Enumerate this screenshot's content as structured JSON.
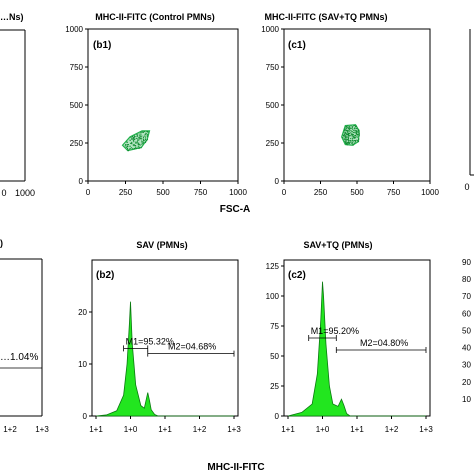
{
  "figure": {
    "shared_xlabel_top": "FSC-A",
    "shared_xlabel_bottom": "MHC-II-FITC"
  },
  "chart_data": [
    {
      "id": "a1",
      "type": "scatter",
      "partial": true,
      "title": "…Ns)",
      "x_ticks": [
        "0",
        "1000"
      ],
      "y_ticks": []
    },
    {
      "id": "b1",
      "type": "scatter",
      "title": "MHC-II-FITC (Control PMNs)",
      "panel_label": "(b1)",
      "xlim": [
        0,
        1000
      ],
      "ylim": [
        0,
        1000
      ],
      "x_ticks": [
        "0",
        "250",
        "500",
        "750",
        "1000"
      ],
      "y_ticks": [
        "0",
        "250",
        "500",
        "750",
        "1000"
      ],
      "population_color": "#22b14c",
      "population_outline": [
        [
          230,
          235
        ],
        [
          280,
          290
        ],
        [
          360,
          330
        ],
        [
          410,
          330
        ],
        [
          395,
          275
        ],
        [
          355,
          220
        ],
        [
          265,
          200
        ]
      ]
    },
    {
      "id": "c1",
      "type": "scatter",
      "title": "MHC-II-FITC (SAV+TQ PMNs)",
      "panel_label": "(c1)",
      "xlim": [
        0,
        1000
      ],
      "ylim": [
        0,
        1000
      ],
      "x_ticks": [
        "0",
        "250",
        "500",
        "750",
        "1000"
      ],
      "y_ticks": [
        "0",
        "250",
        "500",
        "750",
        "1000"
      ],
      "population_color": "#22b14c",
      "population_outline": [
        [
          395,
          290
        ],
        [
          420,
          365
        ],
        [
          490,
          370
        ],
        [
          515,
          330
        ],
        [
          510,
          260
        ],
        [
          470,
          235
        ],
        [
          420,
          240
        ]
      ]
    },
    {
      "id": "d1",
      "type": "scatter",
      "partial": true,
      "title": "",
      "x_ticks": [
        "0"
      ],
      "y_ticks": []
    },
    {
      "id": "a2",
      "type": "area",
      "partial": true,
      "title": "",
      "x_ticks": [
        "1+2",
        "1+3"
      ],
      "markers": [
        {
          "label": "…1.04%"
        }
      ]
    },
    {
      "id": "b2",
      "type": "area",
      "title": "SAV (PMNs)",
      "panel_label": "(b2)",
      "x_scale": "log",
      "x_ticks": [
        "1+1",
        "1+0",
        "1+1",
        "1+2",
        "1+3"
      ],
      "y_ticks": [
        "0",
        "10",
        "20"
      ],
      "ylim": [
        0,
        30
      ],
      "fill_color": "#22e61f",
      "x": [
        -1.0,
        -0.7,
        -0.4,
        -0.2,
        -0.1,
        -0.03,
        0.0,
        0.05,
        0.15,
        0.3,
        0.4,
        0.45,
        0.5,
        0.55,
        0.6,
        0.7,
        0.8,
        1.0,
        3.0
      ],
      "y": [
        0,
        0.2,
        1.0,
        4.0,
        10.0,
        18.0,
        22.0,
        14.0,
        6.0,
        2.0,
        1.5,
        3.0,
        4.5,
        3.0,
        1.2,
        0.3,
        0,
        0,
        0
      ],
      "markers": [
        {
          "label": "M1=95.32%",
          "from": -0.2,
          "to": 0.5,
          "y": 13
        },
        {
          "label": "M2=04.68%",
          "from": 0.5,
          "to": 3.0,
          "y": 12
        }
      ]
    },
    {
      "id": "c2",
      "type": "area",
      "title": "SAV+TQ (PMNs)",
      "panel_label": "(c2)",
      "x_scale": "log",
      "x_ticks": [
        "1+1",
        "1+0",
        "1+1",
        "1+2",
        "1+3"
      ],
      "y_ticks": [
        "0",
        "25",
        "50",
        "75",
        "100",
        "125"
      ],
      "ylim": [
        0,
        130
      ],
      "fill_color": "#22e61f",
      "x": [
        -1.0,
        -0.6,
        -0.3,
        -0.15,
        -0.05,
        0.0,
        0.03,
        0.1,
        0.2,
        0.3,
        0.45,
        0.55,
        0.62,
        0.7,
        0.8,
        1.0,
        3.0
      ],
      "y": [
        0,
        3,
        10,
        35,
        80,
        112,
        100,
        60,
        25,
        10,
        8,
        14,
        9,
        2,
        0,
        0,
        0
      ],
      "markers": [
        {
          "label": "M1=95.20%",
          "from": -0.4,
          "to": 0.4,
          "y": 65
        },
        {
          "label": "M2=04.80%",
          "from": 0.4,
          "to": 3.0,
          "y": 55
        }
      ]
    },
    {
      "id": "d2",
      "type": "area",
      "partial": true,
      "title": "",
      "y_ticks": [
        "10",
        "20",
        "30",
        "40",
        "50",
        "60",
        "70",
        "80",
        "90"
      ]
    }
  ]
}
